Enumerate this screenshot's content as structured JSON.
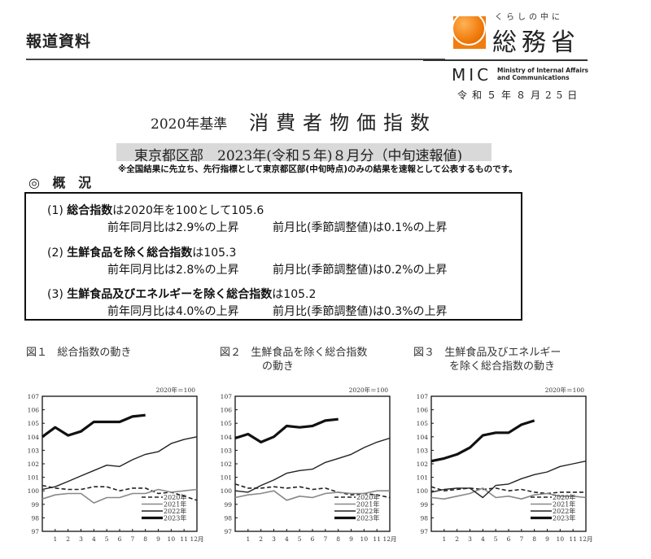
{
  "header": {
    "press_label": "報道資料",
    "logo": {
      "tagline": "くらしの中に",
      "name": "総務省",
      "abbr": "MIC",
      "english_line1": "Ministry of Internal Affairs",
      "english_line2": "and Communications",
      "brand_color": "#f07d10"
    },
    "date": "令和５年８月25日"
  },
  "title": {
    "prefix": "2020年基準",
    "main": "消費者物価指数"
  },
  "subtitle": "東京都区部　2023年(令和５年)８月分（中旬速報値)",
  "note": "※全国結果に先立ち、先行指標として東京都区部(中旬時点)のみの結果を速報として公表するものです。",
  "section": {
    "mark": "◎",
    "label": "概 況"
  },
  "summary": [
    {
      "num": "(1)",
      "bold": "総合指数",
      "rest": "は2020年を100として105.6",
      "yoy": "前年同月比は2.9%の上昇",
      "mom": "前月比(季節調整値)は0.1%の上昇"
    },
    {
      "num": "(2)",
      "bold": "生鮮食品を除く総合指数",
      "rest": "は105.3",
      "yoy": "前年同月比は2.8%の上昇",
      "mom": "前月比(季節調整値)は0.2%の上昇"
    },
    {
      "num": "(3)",
      "bold": "生鮮食品及びエネルギーを除く総合指数",
      "rest": "は105.2",
      "yoy": "前年同月比は4.0%の上昇",
      "mom": "前月比(季節調整値)は0.3%の上昇"
    }
  ],
  "figures": [
    {
      "label": "図１",
      "title_line1": "総合指数の動き",
      "title_line2": ""
    },
    {
      "label": "図２",
      "title_line1": "生鮮食品を除く総合指数",
      "title_line2": "の動き"
    },
    {
      "label": "図３",
      "title_line1": "生鮮食品及びエネルギー",
      "title_line2": "を除く総合指数の動き"
    }
  ],
  "chart_data": [
    {
      "type": "line",
      "title": "図１　総合指数の動き",
      "base_note": "2020年＝100",
      "xlabel": "",
      "ylabel": "",
      "x": [
        0,
        1,
        2,
        3,
        4,
        5,
        6,
        7,
        8,
        9,
        10,
        11,
        12
      ],
      "x_tick_labels": [
        "1",
        "2",
        "3",
        "4",
        "5",
        "6",
        "7",
        "8",
        "9",
        "10",
        "11",
        "12月"
      ],
      "ylim": [
        97,
        107
      ],
      "y_ticks": [
        97,
        98,
        99,
        100,
        101,
        102,
        103,
        104,
        105,
        106,
        107
      ],
      "grid": false,
      "legend_position": "lower right inside",
      "series": [
        {
          "name": "2020年",
          "style": "dashed",
          "values": [
            100.4,
            100.2,
            100.1,
            100.1,
            100.3,
            100.3,
            100.0,
            100.2,
            100.2,
            99.8,
            99.9,
            99.6,
            99.3
          ]
        },
        {
          "name": "2021年",
          "style": "gray-thin",
          "values": [
            99.4,
            99.7,
            99.8,
            99.8,
            99.1,
            99.5,
            99.5,
            99.8,
            99.8,
            100.1,
            99.9,
            100.0,
            100.1
          ]
        },
        {
          "name": "2022年",
          "style": "solid-thin",
          "values": [
            100.1,
            100.3,
            100.7,
            101.1,
            101.5,
            101.9,
            101.8,
            102.3,
            102.7,
            102.9,
            103.5,
            103.8,
            104.0
          ]
        },
        {
          "name": "2023年",
          "style": "solid-thick",
          "values": [
            104.0,
            104.7,
            104.1,
            104.4,
            105.1,
            105.1,
            105.1,
            105.5,
            105.6,
            null,
            null,
            null,
            null
          ]
        }
      ]
    },
    {
      "type": "line",
      "title": "図２　生鮮食品を除く総合指数の動き",
      "base_note": "2020年＝100",
      "xlabel": "",
      "ylabel": "",
      "x": [
        0,
        1,
        2,
        3,
        4,
        5,
        6,
        7,
        8,
        9,
        10,
        11,
        12
      ],
      "x_tick_labels": [
        "1",
        "2",
        "3",
        "4",
        "5",
        "6",
        "7",
        "8",
        "9",
        "10",
        "11",
        "12月"
      ],
      "ylim": [
        97,
        107
      ],
      "y_ticks": [
        97,
        98,
        99,
        100,
        101,
        102,
        103,
        104,
        105,
        106,
        107
      ],
      "grid": false,
      "legend_position": "lower right inside",
      "series": [
        {
          "name": "2020年",
          "style": "dashed",
          "values": [
            100.5,
            100.2,
            100.2,
            100.3,
            100.2,
            100.3,
            100.1,
            100.2,
            99.9,
            99.7,
            99.8,
            99.7,
            99.5
          ]
        },
        {
          "name": "2021年",
          "style": "gray-thin",
          "values": [
            99.5,
            99.7,
            99.8,
            100.0,
            99.3,
            99.6,
            99.5,
            99.8,
            99.9,
            99.8,
            99.8,
            100.0,
            100.0
          ]
        },
        {
          "name": "2022年",
          "style": "solid-thin",
          "values": [
            100.0,
            99.9,
            100.4,
            100.8,
            101.3,
            101.5,
            101.6,
            102.1,
            102.4,
            102.7,
            103.2,
            103.6,
            103.9
          ]
        },
        {
          "name": "2023年",
          "style": "solid-thick",
          "values": [
            103.9,
            104.2,
            103.6,
            104.0,
            104.8,
            104.7,
            104.8,
            105.2,
            105.3,
            null,
            null,
            null,
            null
          ]
        }
      ]
    },
    {
      "type": "line",
      "title": "図３　生鮮食品及びエネルギーを除く総合指数の動き",
      "base_note": "2020年＝100",
      "xlabel": "",
      "ylabel": "",
      "x": [
        0,
        1,
        2,
        3,
        4,
        5,
        6,
        7,
        8,
        9,
        10,
        11,
        12
      ],
      "x_tick_labels": [
        "1",
        "2",
        "3",
        "4",
        "5",
        "6",
        "7",
        "8",
        "9",
        "10",
        "11",
        "12月"
      ],
      "ylim": [
        97,
        107
      ],
      "y_ticks": [
        97,
        98,
        99,
        100,
        101,
        102,
        103,
        104,
        105,
        106,
        107
      ],
      "grid": false,
      "legend_position": "lower right inside",
      "series": [
        {
          "name": "2020年",
          "style": "dashed",
          "values": [
            100.3,
            100.0,
            100.1,
            100.2,
            100.1,
            100.2,
            100.0,
            100.1,
            99.9,
            99.8,
            99.9,
            99.9,
            99.9
          ]
        },
        {
          "name": "2021年",
          "style": "gray-thin",
          "values": [
            99.5,
            99.4,
            99.6,
            99.8,
            100.2,
            99.5,
            99.6,
            99.4,
            99.7,
            99.8,
            99.6,
            99.6,
            99.5
          ]
        },
        {
          "name": "2022年",
          "style": "solid-thin",
          "values": [
            99.9,
            100.1,
            100.2,
            100.2,
            99.5,
            100.4,
            100.5,
            100.9,
            101.2,
            101.4,
            101.8,
            102.0,
            102.2
          ]
        },
        {
          "name": "2023年",
          "style": "solid-thick",
          "values": [
            102.2,
            102.4,
            102.7,
            103.2,
            104.1,
            104.3,
            104.3,
            104.9,
            105.2,
            null,
            null,
            null,
            null
          ]
        }
      ]
    }
  ]
}
